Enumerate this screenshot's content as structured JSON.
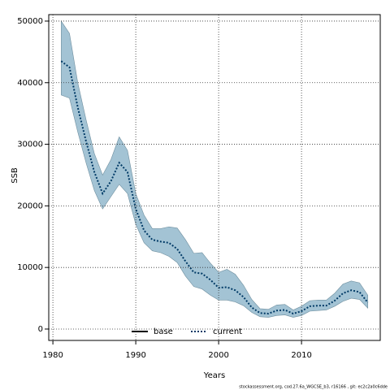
{
  "chart_data": {
    "type": "line",
    "x_label": "Years",
    "y_label": "SSB",
    "footnote": "stockassessment.org, cod.27.6a_WGCSE_b3, r16166 , git: ec2c2a0c6dde",
    "x": [
      1981,
      1982,
      1983,
      1984,
      1985,
      1986,
      1987,
      1988,
      1989,
      1990,
      1991,
      1992,
      1993,
      1994,
      1995,
      1996,
      1997,
      1998,
      1999,
      2000,
      2001,
      2002,
      2003,
      2004,
      2005,
      2006,
      2007,
      2008,
      2009,
      2010,
      2011,
      2012,
      2013,
      2014,
      2015,
      2016,
      2017,
      2018
    ],
    "series": [
      {
        "name": "base",
        "color": "#000000",
        "values": [
          null,
          null,
          null,
          null,
          null,
          null,
          null,
          null,
          null,
          null,
          null,
          null,
          null,
          null,
          null,
          null,
          null,
          null,
          null,
          null,
          null,
          null,
          null,
          null,
          null,
          null,
          null,
          null,
          null,
          null,
          null,
          null,
          null,
          null,
          null,
          null,
          null,
          null
        ]
      },
      {
        "name": "current",
        "color": "#003a66",
        "band_color": "#a3c3d4",
        "values": [
          43500,
          42500,
          36000,
          30500,
          25500,
          22000,
          24000,
          27000,
          25500,
          19500,
          16000,
          14500,
          14200,
          14000,
          13000,
          11000,
          9200,
          9000,
          8000,
          6700,
          6800,
          6300,
          5200,
          3500,
          2600,
          2500,
          3000,
          3100,
          2500,
          2900,
          3700,
          3800,
          3800,
          4600,
          5800,
          6300,
          6000,
          4300
        ],
        "upper": [
          50000,
          48000,
          40000,
          34000,
          28500,
          25000,
          27500,
          31200,
          29000,
          22000,
          18500,
          16300,
          16300,
          16600,
          16400,
          14500,
          12300,
          12400,
          10700,
          9200,
          9700,
          8900,
          7100,
          4800,
          3300,
          3200,
          3900,
          4000,
          3100,
          3700,
          4600,
          4700,
          4700,
          5800,
          7300,
          7800,
          7500,
          5500
        ],
        "lower": [
          38000,
          37500,
          32000,
          27000,
          22500,
          19500,
          21500,
          23500,
          22000,
          17000,
          14000,
          12700,
          12400,
          11800,
          10800,
          8600,
          6900,
          6500,
          5500,
          4700,
          4700,
          4400,
          3800,
          2700,
          2000,
          1900,
          2200,
          2300,
          1900,
          2200,
          2900,
          3000,
          3100,
          3700,
          4500,
          5000,
          4800,
          3400
        ]
      }
    ],
    "xlim": [
      1979.5,
      2019.5
    ],
    "ylim": [
      -1850,
      51050
    ],
    "xticks": [
      1980,
      1990,
      2000,
      2010
    ],
    "yticks": [
      0,
      10000,
      20000,
      30000,
      40000,
      50000
    ],
    "grid": true,
    "legend": "bottom"
  }
}
